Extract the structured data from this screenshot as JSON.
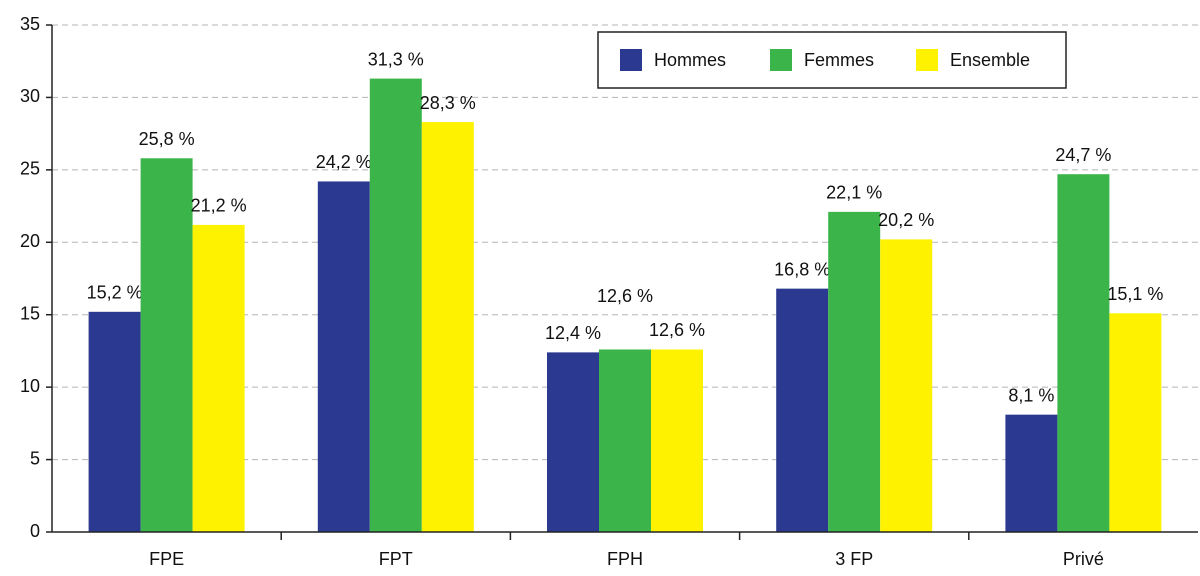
{
  "chart_data": {
    "type": "bar",
    "categories": [
      "FPE",
      "FPT",
      "FPH",
      "3 FP",
      "Privé"
    ],
    "series": [
      {
        "name": "Hommes",
        "color": "#2b3990",
        "values": [
          15.2,
          24.2,
          12.4,
          16.8,
          8.1
        ],
        "value_labels": [
          "15,2 %",
          "24,2 %",
          "12,4 %",
          "16,8 %",
          "8,1 %"
        ]
      },
      {
        "name": "Femmes",
        "color": "#3bb54a",
        "values": [
          25.8,
          31.3,
          12.6,
          22.1,
          24.7
        ],
        "value_labels": [
          "25,8 %",
          "31,3 %",
          "12,6 %",
          "22,1 %",
          "24,7 %"
        ]
      },
      {
        "name": "Ensemble",
        "color": "#fff200",
        "values": [
          21.2,
          28.3,
          12.6,
          20.2,
          15.1
        ],
        "value_labels": [
          "21,2 %",
          "28,3 %",
          "12,6 %",
          "20,2 %",
          "15,1 %"
        ]
      }
    ],
    "ylim": [
      0,
      35
    ],
    "yticks": [
      0,
      5,
      10,
      15,
      20,
      25,
      30,
      35
    ],
    "grid": true,
    "legend": "top-right"
  }
}
